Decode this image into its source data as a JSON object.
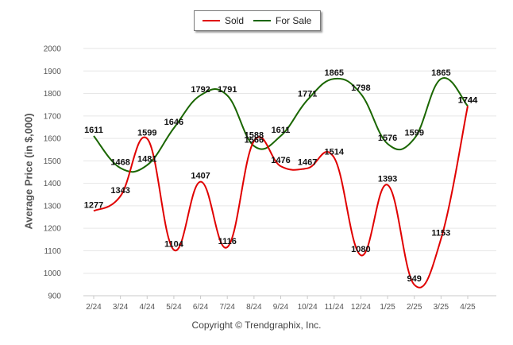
{
  "chart_data": {
    "type": "line",
    "categories": [
      "2/24",
      "3/24",
      "4/24",
      "5/24",
      "6/24",
      "7/24",
      "8/24",
      "9/24",
      "10/24",
      "11/24",
      "12/24",
      "1/25",
      "2/25",
      "3/25",
      "4/25"
    ],
    "series": [
      {
        "name": "Sold",
        "color": "#e00000",
        "values": [
          1277,
          1343,
          1599,
          1104,
          1407,
          1116,
          1588,
          1476,
          1467,
          1514,
          1080,
          1393,
          949,
          1153,
          1744
        ]
      },
      {
        "name": "For Sale",
        "color": "#1a6600",
        "values": [
          1611,
          1468,
          1481,
          1646,
          1792,
          1791,
          1566,
          1611,
          1771,
          1865,
          1798,
          1576,
          1599,
          1865,
          1744
        ]
      }
    ],
    "ylabel": "Average Price (in $,000)",
    "ylim": [
      900,
      2000
    ],
    "yticks": [
      900,
      1000,
      1100,
      1200,
      1300,
      1400,
      1500,
      1600,
      1700,
      1800,
      1900,
      2000
    ],
    "grid": true,
    "legend_position": "top-center"
  },
  "footer": "Copyright © Trendgraphix, Inc."
}
